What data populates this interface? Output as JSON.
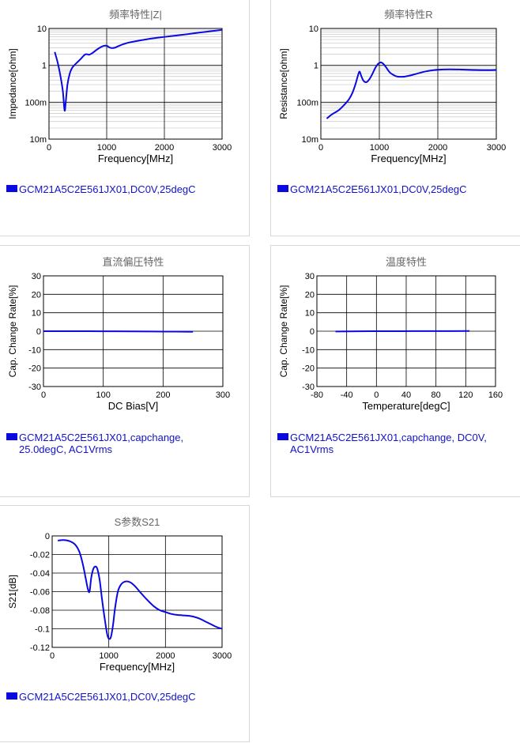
{
  "chart_data": [
    {
      "id": "impedance",
      "type": "line",
      "title": "頻率特性|Z|",
      "xlabel": "Frequency[MHz]",
      "ylabel": "Impedance[ohm]",
      "x_scale": "linear",
      "y_scale": "log",
      "xlim": [
        0,
        3000
      ],
      "ylim": [
        0.01,
        10
      ],
      "x_ticks": [
        0,
        1000,
        2000,
        3000
      ],
      "x_tick_labels": [
        "0",
        "1000",
        "2000",
        "3000"
      ],
      "y_ticks": [
        0.01,
        0.1,
        1,
        10
      ],
      "y_tick_labels": [
        "10m",
        "100m",
        "1",
        "10"
      ],
      "legend": [
        "GCM21A5C2E561JX01,DC0V,25degC"
      ],
      "series": [
        {
          "name": "GCM21A5C2E561JX01,DC0V,25degC",
          "color": "#0a0ae0",
          "x": [
            100,
            150,
            200,
            240,
            270,
            290,
            320,
            360,
            400,
            450,
            500,
            560,
            620,
            660,
            700,
            760,
            820,
            880,
            940,
            1000,
            1040,
            1080,
            1140,
            1200,
            1300,
            1400,
            1600,
            1800,
            2000,
            2200,
            2400,
            2600,
            2800,
            3000
          ],
          "y": [
            2.3,
            1.2,
            0.5,
            0.2,
            0.06,
            0.1,
            0.3,
            0.6,
            0.85,
            1.05,
            1.25,
            1.55,
            1.95,
            2.0,
            1.95,
            2.2,
            2.6,
            3.0,
            3.35,
            3.4,
            3.1,
            2.95,
            3.0,
            3.3,
            3.8,
            4.2,
            4.8,
            5.4,
            5.9,
            6.4,
            7.0,
            7.7,
            8.4,
            9.2
          ]
        }
      ]
    },
    {
      "id": "resistance",
      "type": "line",
      "title": "頻率特性R",
      "xlabel": "Frequency[MHz]",
      "ylabel": "Resistance[ohm]",
      "x_scale": "linear",
      "y_scale": "log",
      "xlim": [
        0,
        3000
      ],
      "ylim": [
        0.01,
        10
      ],
      "x_ticks": [
        0,
        1000,
        2000,
        3000
      ],
      "x_tick_labels": [
        "0",
        "1000",
        "2000",
        "3000"
      ],
      "y_ticks": [
        0.01,
        0.1,
        1,
        10
      ],
      "y_tick_labels": [
        "10m",
        "100m",
        "1",
        "10"
      ],
      "legend": [
        "GCM21A5C2E561JX01,DC0V,25degC"
      ],
      "series": [
        {
          "name": "GCM21A5C2E561JX01,DC0V,25degC",
          "color": "#0a0ae0",
          "x": [
            100,
            150,
            200,
            300,
            400,
            480,
            540,
            590,
            630,
            660,
            690,
            730,
            780,
            830,
            880,
            930,
            980,
            1030,
            1080,
            1130,
            1180,
            1240,
            1300,
            1400,
            1500,
            1600,
            1700,
            1800,
            1900,
            2000,
            2200,
            2400,
            2600,
            2800,
            3000
          ],
          "y": [
            0.036,
            0.042,
            0.048,
            0.06,
            0.085,
            0.12,
            0.18,
            0.3,
            0.5,
            0.68,
            0.52,
            0.38,
            0.35,
            0.42,
            0.58,
            0.85,
            1.1,
            1.2,
            1.05,
            0.82,
            0.64,
            0.55,
            0.5,
            0.49,
            0.52,
            0.57,
            0.63,
            0.69,
            0.73,
            0.76,
            0.78,
            0.77,
            0.75,
            0.74,
            0.75
          ]
        }
      ]
    },
    {
      "id": "dc-bias",
      "type": "line",
      "title": "直流偏圧特性",
      "xlabel": "DC Bias[V]",
      "ylabel": "Cap. Change Rate[%]",
      "x_scale": "linear",
      "y_scale": "linear",
      "xlim": [
        0,
        300
      ],
      "ylim": [
        -30,
        30
      ],
      "x_ticks": [
        0,
        100,
        200,
        300
      ],
      "x_tick_labels": [
        "0",
        "100",
        "200",
        "300"
      ],
      "y_ticks": [
        -30,
        -20,
        -10,
        0,
        10,
        20,
        30
      ],
      "y_tick_labels": [
        "-30",
        "-20",
        "-10",
        "0",
        "10",
        "20",
        "30"
      ],
      "legend": [
        "GCM21A5C2E561JX01,capchange,",
        "25.0degC, AC1Vrms"
      ],
      "series": [
        {
          "name": "GCM21A5C2E561JX01,capchange, 25.0degC, AC1Vrms",
          "color": "#0a0ae0",
          "x": [
            0,
            50,
            100,
            150,
            200,
            250
          ],
          "y": [
            0,
            0,
            -0.05,
            -0.1,
            -0.2,
            -0.3
          ]
        }
      ]
    },
    {
      "id": "temperature",
      "type": "line",
      "title": "温度特性",
      "xlabel": "Temperature[degC]",
      "ylabel": "Cap. Change Rate[%]",
      "x_scale": "linear",
      "y_scale": "linear",
      "xlim": [
        -80,
        160
      ],
      "ylim": [
        -30,
        30
      ],
      "x_ticks": [
        -80,
        -40,
        0,
        40,
        80,
        120,
        160
      ],
      "x_tick_labels": [
        "-80",
        "-40",
        "0",
        "40",
        "80",
        "120",
        "160"
      ],
      "y_ticks": [
        -30,
        -20,
        -10,
        0,
        10,
        20,
        30
      ],
      "y_tick_labels": [
        "-30",
        "-20",
        "-10",
        "0",
        "10",
        "20",
        "30"
      ],
      "legend": [
        "GCM21A5C2E561JX01,capchange, DC0V,",
        "AC1Vrms"
      ],
      "series": [
        {
          "name": "GCM21A5C2E561JX01,capchange, DC0V, AC1Vrms",
          "color": "#0a0ae0",
          "x": [
            -55,
            -25,
            0,
            25,
            50,
            85,
            125
          ],
          "y": [
            -0.15,
            -0.05,
            0,
            0,
            0.05,
            0.05,
            0.1
          ]
        }
      ]
    },
    {
      "id": "s21",
      "type": "line",
      "title": "S参数S21",
      "xlabel": "Frequency[MHz]",
      "ylabel": "S21[dB]",
      "x_scale": "linear",
      "y_scale": "linear",
      "xlim": [
        0,
        3000
      ],
      "ylim": [
        -0.12,
        0
      ],
      "x_ticks": [
        0,
        1000,
        2000,
        3000
      ],
      "x_tick_labels": [
        "0",
        "1000",
        "2000",
        "3000"
      ],
      "y_ticks": [
        -0.12,
        -0.1,
        -0.08,
        -0.06,
        -0.04,
        -0.02,
        0
      ],
      "y_tick_labels": [
        "-0.12",
        "-0.1",
        "-0.08",
        "-0.06",
        "-0.04",
        "-0.02",
        "0"
      ],
      "legend": [
        "GCM21A5C2E561JX01,DC0V,25degC"
      ],
      "series": [
        {
          "name": "GCM21A5C2E561JX01,DC0V,25degC",
          "color": "#0a0ae0",
          "x": [
            100,
            200,
            300,
            400,
            480,
            540,
            590,
            630,
            660,
            690,
            730,
            770,
            800,
            840,
            880,
            930,
            980,
            1030,
            1070,
            1110,
            1160,
            1220,
            1300,
            1380,
            1460,
            1560,
            1680,
            1800,
            1900,
            2000,
            2100,
            2200,
            2300,
            2400,
            2500,
            2600,
            2700,
            2800,
            2900,
            3000
          ],
          "y": [
            -0.005,
            -0.0045,
            -0.0055,
            -0.009,
            -0.017,
            -0.03,
            -0.045,
            -0.057,
            -0.06,
            -0.045,
            -0.035,
            -0.033,
            -0.036,
            -0.048,
            -0.068,
            -0.09,
            -0.108,
            -0.11,
            -0.098,
            -0.078,
            -0.06,
            -0.052,
            -0.049,
            -0.05,
            -0.054,
            -0.061,
            -0.069,
            -0.076,
            -0.08,
            -0.082,
            -0.084,
            -0.085,
            -0.0855,
            -0.086,
            -0.087,
            -0.089,
            -0.092,
            -0.095,
            -0.098,
            -0.1
          ]
        }
      ]
    }
  ]
}
